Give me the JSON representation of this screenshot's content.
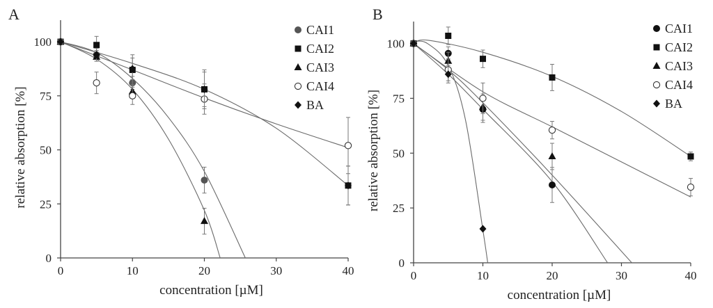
{
  "chart_data": [
    {
      "panel_label": "A",
      "type": "scatter",
      "xlabel": "concentration [µM]",
      "ylabel": "relative absorption [%]",
      "xlim": [
        0,
        40
      ],
      "ylim": [
        0,
        110
      ],
      "xticks": [
        0,
        10,
        20,
        30,
        40
      ],
      "yticks": [
        0,
        25,
        50,
        75,
        100
      ],
      "x_tick_labels": [
        "0",
        "10",
        "20",
        "30",
        "40"
      ],
      "y_tick_labels": [
        "0",
        "25",
        "50",
        "75",
        "100"
      ],
      "legend_position": "top-right",
      "series": [
        {
          "name": "CAI1",
          "marker": "circle-filled",
          "color": "#555555",
          "x": [
            0,
            5,
            10,
            20
          ],
          "y": [
            100,
            94,
            81,
            36
          ],
          "err": [
            1,
            2,
            3,
            6
          ],
          "fit": [
            [
              0,
              100
            ],
            [
              5,
              95
            ],
            [
              10,
              83
            ],
            [
              15,
              65
            ],
            [
              20,
              40
            ],
            [
              25.7,
              0
            ]
          ]
        },
        {
          "name": "CAI2",
          "marker": "square",
          "color": "#111111",
          "x": [
            0,
            5,
            10,
            20,
            40
          ],
          "y": [
            100,
            98.5,
            87,
            78,
            33.5
          ],
          "err": [
            1,
            4,
            7,
            9,
            9
          ],
          "fit": [
            [
              0,
              100
            ],
            [
              10,
              90
            ],
            [
              20,
              78
            ],
            [
              30,
              60
            ],
            [
              40,
              33.5
            ]
          ]
        },
        {
          "name": "CAI3",
          "marker": "triangle",
          "color": "#111111",
          "x": [
            0,
            5,
            10,
            20
          ],
          "y": [
            100,
            93,
            77,
            17
          ],
          "err": [
            1,
            2,
            3,
            6
          ],
          "fit": [
            [
              0,
              100
            ],
            [
              5,
              92
            ],
            [
              10,
              78
            ],
            [
              15,
              55
            ],
            [
              20,
              22
            ],
            [
              22.2,
              0
            ]
          ]
        },
        {
          "name": "CAI4",
          "marker": "circle-open",
          "color": "#111111",
          "x": [
            0,
            5,
            10,
            20,
            40
          ],
          "y": [
            100,
            81,
            75,
            73.5,
            52
          ],
          "err": [
            1,
            5,
            4,
            7,
            13
          ],
          "fit": [
            [
              0,
              100
            ],
            [
              10,
              87
            ],
            [
              20,
              74
            ],
            [
              30,
              62
            ],
            [
              40,
              51
            ]
          ]
        },
        {
          "name": "BA",
          "marker": "diamond",
          "color": "#111111",
          "x": [
            0,
            5,
            10,
            20,
            40
          ],
          "y": [
            100,
            94,
            87.5,
            78,
            33.5
          ],
          "err": [
            1,
            3,
            5,
            8,
            9
          ],
          "fit": []
        }
      ]
    },
    {
      "panel_label": "B",
      "type": "scatter",
      "xlabel": "concentration [µM]",
      "ylabel": "relative absorption [%]",
      "xlim": [
        0,
        40
      ],
      "ylim": [
        0,
        110
      ],
      "xticks": [
        0,
        10,
        20,
        30,
        40
      ],
      "yticks": [
        0,
        25,
        50,
        75,
        100
      ],
      "x_tick_labels": [
        "0",
        "10",
        "20",
        "30",
        "40"
      ],
      "y_tick_labels": [
        "0",
        "25",
        "50",
        "75",
        "100"
      ],
      "legend_position": "top-right",
      "series": [
        {
          "name": "CAI1",
          "marker": "circle-filled",
          "color": "#111111",
          "x": [
            0,
            5,
            10,
            20
          ],
          "y": [
            100,
            95.5,
            70,
            35.5
          ],
          "err": [
            1,
            3,
            6,
            8
          ],
          "fit": [
            [
              0,
              100
            ],
            [
              5,
              86
            ],
            [
              10,
              70
            ],
            [
              20,
              37
            ],
            [
              28,
              0
            ]
          ]
        },
        {
          "name": "CAI2",
          "marker": "square",
          "color": "#111111",
          "x": [
            0,
            5,
            10,
            20,
            40
          ],
          "y": [
            100,
            103.5,
            93,
            84.5,
            48.5
          ],
          "err": [
            1,
            4,
            4,
            6,
            2
          ],
          "fit": [
            [
              0,
              100
            ],
            [
              2,
              101.5
            ],
            [
              10,
              96
            ],
            [
              20,
              85
            ],
            [
              30,
              69
            ],
            [
              40,
              48.5
            ]
          ]
        },
        {
          "name": "CAI3",
          "marker": "triangle",
          "color": "#111111",
          "x": [
            0,
            5,
            10,
            20
          ],
          "y": [
            100,
            92,
            71,
            48.5
          ],
          "err": [
            1,
            4,
            6,
            6
          ],
          "fit": [
            [
              0,
              100
            ],
            [
              5,
              88
            ],
            [
              10,
              73
            ],
            [
              20,
              40
            ],
            [
              31.5,
              0
            ]
          ]
        },
        {
          "name": "CAI4",
          "marker": "circle-open",
          "color": "#111111",
          "x": [
            0,
            5,
            10,
            20,
            40
          ],
          "y": [
            100,
            88,
            75,
            60.5,
            34.5
          ],
          "err": [
            1,
            5,
            7,
            4,
            4
          ],
          "fit": [
            [
              0,
              100
            ],
            [
              10,
              78
            ],
            [
              20,
              62
            ],
            [
              30,
              46
            ],
            [
              40,
              30
            ]
          ]
        },
        {
          "name": "BA",
          "marker": "diamond",
          "color": "#111111",
          "x": [
            0,
            5,
            10
          ],
          "y": [
            100,
            86,
            15.5
          ],
          "err": [
            1,
            4,
            0
          ],
          "fit": [
            [
              0,
              101
            ],
            [
              2,
              100
            ],
            [
              5,
              90
            ],
            [
              7.5,
              65
            ],
            [
              10,
              15
            ],
            [
              10.7,
              0
            ]
          ]
        }
      ]
    }
  ]
}
